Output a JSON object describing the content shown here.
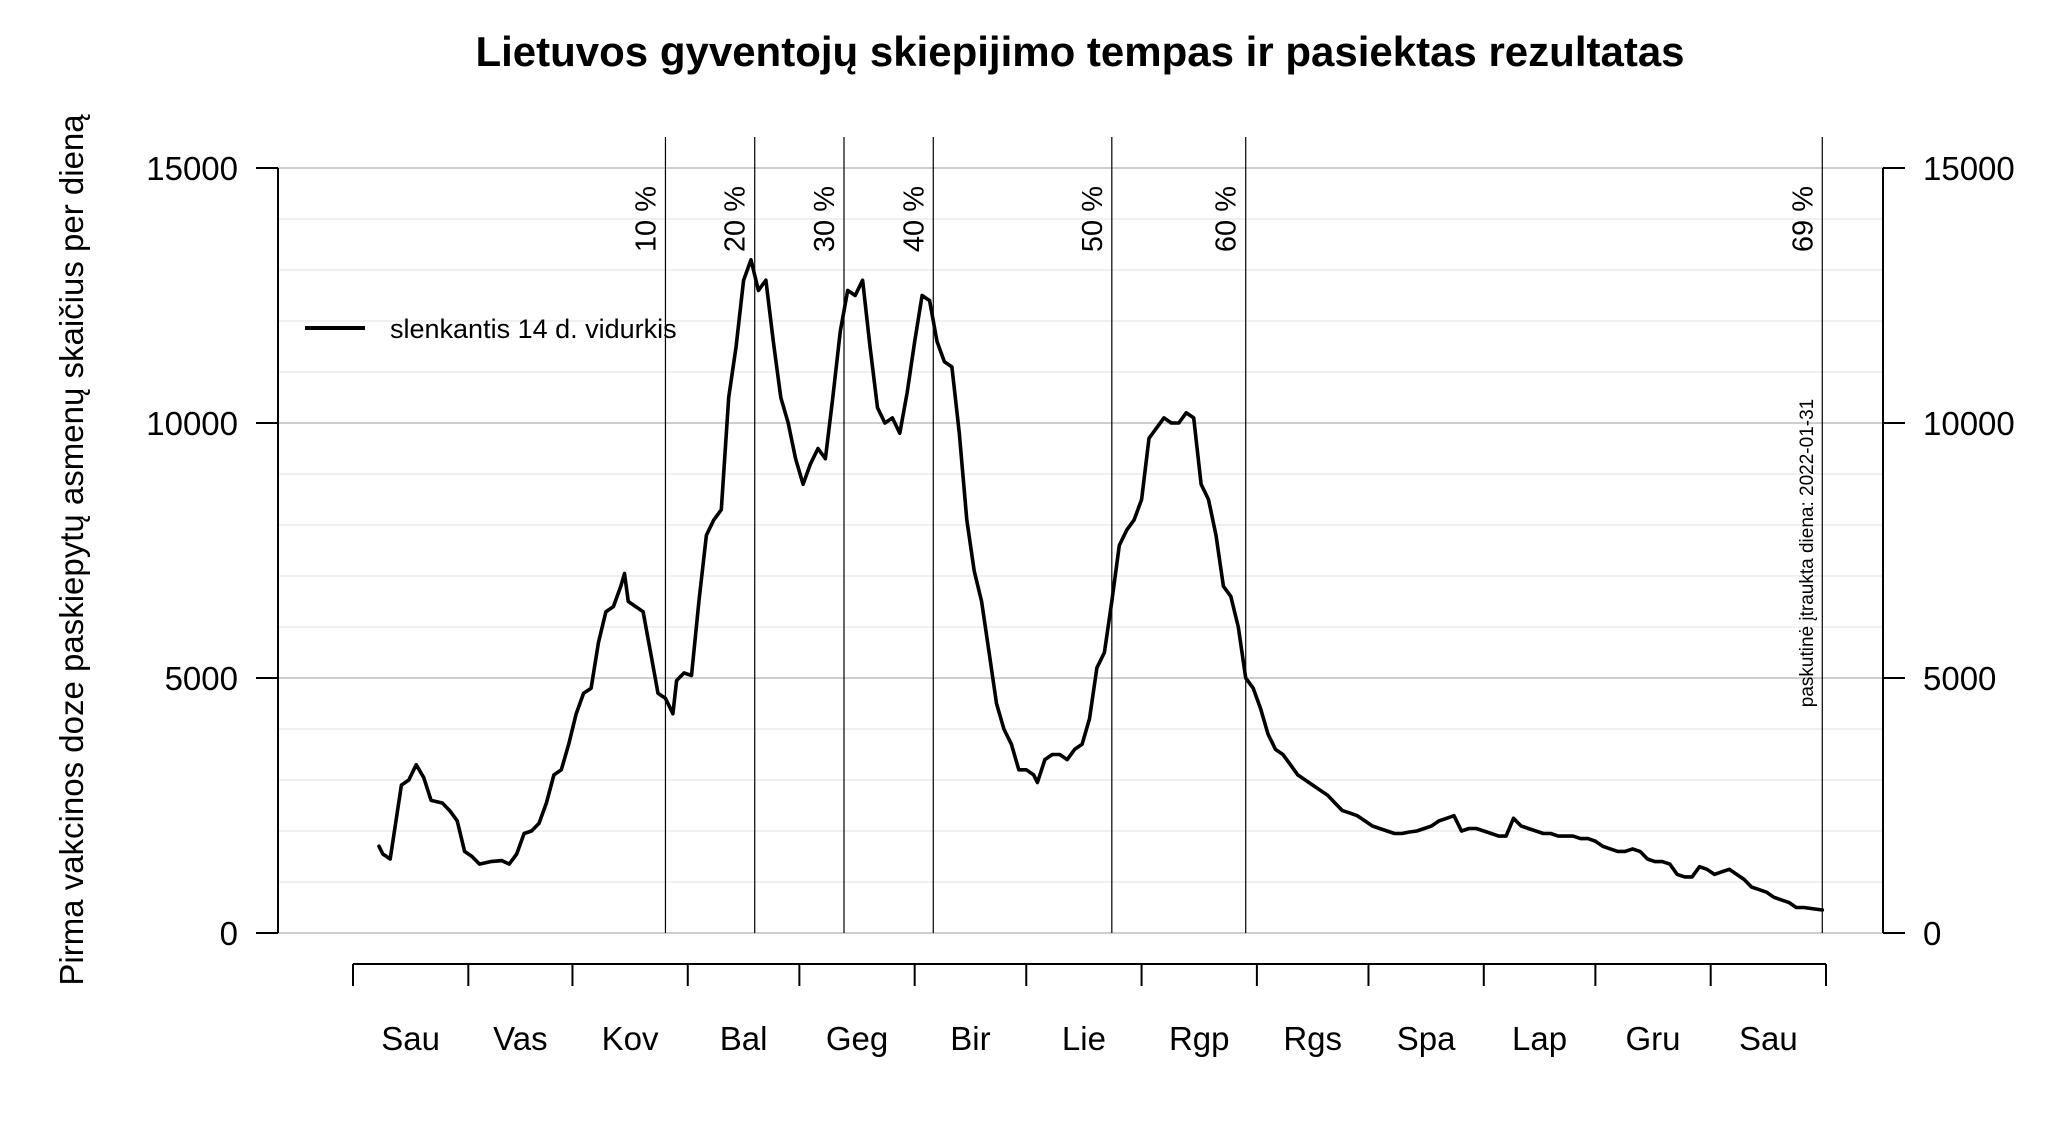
{
  "chart_data": {
    "type": "line",
    "title": "Lietuvos gyventojų skiepijimo tempas ir pasiektas rezultatas",
    "ylabel": "Pirma vakcinos doze paskiepytų asmenų skaičius per dieną",
    "xlabel": "",
    "ylim": [
      0,
      15000
    ],
    "y_ticks": [
      "0",
      "5000",
      "10000",
      "15000"
    ],
    "y_tick_values": [
      0,
      5000,
      10000,
      15000
    ],
    "minor_grid_step": 1000,
    "grid": true,
    "legend": {
      "label": "slenkantis 14 d. vidurkis",
      "placement": "top-left"
    },
    "note": "paskutinė įtraukta diena: 2022-01-31",
    "month_labels": [
      "Sau",
      "Vas",
      "Kov",
      "Bal",
      "Geg",
      "Bir",
      "Lie",
      "Rgp",
      "Rgs",
      "Spa",
      "Lap",
      "Gru",
      "Sau"
    ],
    "month_boundaries": [
      "2021-01-01",
      "2021-02-01",
      "2021-03-01",
      "2021-04-01",
      "2021-05-01",
      "2021-06-01",
      "2021-07-01",
      "2021-08-01",
      "2021-09-01",
      "2021-10-01",
      "2021-11-01",
      "2021-12-01",
      "2022-01-01",
      "2022-02-01"
    ],
    "x_range": [
      "2021-01-01",
      "2022-02-01"
    ],
    "milestones": [
      {
        "label": "10 %",
        "date": "2021-03-26"
      },
      {
        "label": "20 %",
        "date": "2021-04-19"
      },
      {
        "label": "30 %",
        "date": "2021-05-13"
      },
      {
        "label": "40 %",
        "date": "2021-06-06"
      },
      {
        "label": "50 %",
        "date": "2021-07-24"
      },
      {
        "label": "60 %",
        "date": "2021-08-29"
      },
      {
        "label": "69 %",
        "date": "2022-01-31"
      }
    ],
    "series": [
      {
        "name": "slenkantis 14 d. vidurkis",
        "color": "#000000",
        "points": [
          [
            "2021-01-08",
            1700
          ],
          [
            "2021-01-09",
            1550
          ],
          [
            "2021-01-11",
            1450
          ],
          [
            "2021-01-14",
            2900
          ],
          [
            "2021-01-16",
            3000
          ],
          [
            "2021-01-18",
            3300
          ],
          [
            "2021-01-20",
            3050
          ],
          [
            "2021-01-22",
            2600
          ],
          [
            "2021-01-25",
            2550
          ],
          [
            "2021-01-27",
            2400
          ],
          [
            "2021-01-29",
            2200
          ],
          [
            "2021-01-31",
            1600
          ],
          [
            "2021-02-02",
            1500
          ],
          [
            "2021-02-04",
            1350
          ],
          [
            "2021-02-07",
            1400
          ],
          [
            "2021-02-10",
            1420
          ],
          [
            "2021-02-12",
            1350
          ],
          [
            "2021-02-14",
            1550
          ],
          [
            "2021-02-16",
            1950
          ],
          [
            "2021-02-18",
            2000
          ],
          [
            "2021-02-20",
            2150
          ],
          [
            "2021-02-22",
            2550
          ],
          [
            "2021-02-24",
            3100
          ],
          [
            "2021-02-26",
            3200
          ],
          [
            "2021-02-28",
            3700
          ],
          [
            "2021-03-02",
            4300
          ],
          [
            "2021-03-04",
            4700
          ],
          [
            "2021-03-06",
            4800
          ],
          [
            "2021-03-08",
            5700
          ],
          [
            "2021-03-10",
            6300
          ],
          [
            "2021-03-12",
            6400
          ],
          [
            "2021-03-14",
            6800
          ],
          [
            "2021-03-15",
            7050
          ],
          [
            "2021-03-16",
            6500
          ],
          [
            "2021-03-18",
            6400
          ],
          [
            "2021-03-20",
            6300
          ],
          [
            "2021-03-22",
            5500
          ],
          [
            "2021-03-24",
            4700
          ],
          [
            "2021-03-26",
            4600
          ],
          [
            "2021-03-28",
            4300
          ],
          [
            "2021-03-29",
            4950
          ],
          [
            "2021-03-31",
            5100
          ],
          [
            "2021-04-02",
            5050
          ],
          [
            "2021-04-04",
            6500
          ],
          [
            "2021-04-06",
            7800
          ],
          [
            "2021-04-08",
            8100
          ],
          [
            "2021-04-10",
            8300
          ],
          [
            "2021-04-12",
            10500
          ],
          [
            "2021-04-14",
            11500
          ],
          [
            "2021-04-16",
            12800
          ],
          [
            "2021-04-18",
            13200
          ],
          [
            "2021-04-20",
            12600
          ],
          [
            "2021-04-22",
            12800
          ],
          [
            "2021-04-24",
            11600
          ],
          [
            "2021-04-26",
            10500
          ],
          [
            "2021-04-28",
            10000
          ],
          [
            "2021-04-30",
            9300
          ],
          [
            "2021-05-02",
            8800
          ],
          [
            "2021-05-04",
            9200
          ],
          [
            "2021-05-06",
            9500
          ],
          [
            "2021-05-08",
            9300
          ],
          [
            "2021-05-10",
            10500
          ],
          [
            "2021-05-12",
            11800
          ],
          [
            "2021-05-14",
            12600
          ],
          [
            "2021-05-16",
            12500
          ],
          [
            "2021-05-18",
            12800
          ],
          [
            "2021-05-20",
            11500
          ],
          [
            "2021-05-22",
            10300
          ],
          [
            "2021-05-24",
            10000
          ],
          [
            "2021-05-26",
            10100
          ],
          [
            "2021-05-28",
            9800
          ],
          [
            "2021-05-30",
            10600
          ],
          [
            "2021-06-01",
            11600
          ],
          [
            "2021-06-03",
            12500
          ],
          [
            "2021-06-05",
            12400
          ],
          [
            "2021-06-07",
            11600
          ],
          [
            "2021-06-09",
            11200
          ],
          [
            "2021-06-11",
            11100
          ],
          [
            "2021-06-13",
            9800
          ],
          [
            "2021-06-15",
            8100
          ],
          [
            "2021-06-17",
            7100
          ],
          [
            "2021-06-19",
            6500
          ],
          [
            "2021-06-21",
            5500
          ],
          [
            "2021-06-23",
            4500
          ],
          [
            "2021-06-25",
            4000
          ],
          [
            "2021-06-27",
            3700
          ],
          [
            "2021-06-29",
            3200
          ],
          [
            "2021-07-01",
            3200
          ],
          [
            "2021-07-03",
            3100
          ],
          [
            "2021-07-04",
            2950
          ],
          [
            "2021-07-06",
            3400
          ],
          [
            "2021-07-08",
            3500
          ],
          [
            "2021-07-10",
            3500
          ],
          [
            "2021-07-12",
            3400
          ],
          [
            "2021-07-14",
            3600
          ],
          [
            "2021-07-16",
            3700
          ],
          [
            "2021-07-18",
            4200
          ],
          [
            "2021-07-20",
            5200
          ],
          [
            "2021-07-22",
            5500
          ],
          [
            "2021-07-24",
            6500
          ],
          [
            "2021-07-26",
            7600
          ],
          [
            "2021-07-28",
            7900
          ],
          [
            "2021-07-30",
            8100
          ],
          [
            "2021-08-01",
            8500
          ],
          [
            "2021-08-03",
            9700
          ],
          [
            "2021-08-05",
            9900
          ],
          [
            "2021-08-07",
            10100
          ],
          [
            "2021-08-09",
            10000
          ],
          [
            "2021-08-11",
            10000
          ],
          [
            "2021-08-13",
            10200
          ],
          [
            "2021-08-15",
            10100
          ],
          [
            "2021-08-17",
            8800
          ],
          [
            "2021-08-19",
            8500
          ],
          [
            "2021-08-21",
            7800
          ],
          [
            "2021-08-23",
            6800
          ],
          [
            "2021-08-25",
            6600
          ],
          [
            "2021-08-27",
            6000
          ],
          [
            "2021-08-29",
            5000
          ],
          [
            "2021-08-31",
            4800
          ],
          [
            "2021-09-02",
            4400
          ],
          [
            "2021-09-04",
            3900
          ],
          [
            "2021-09-06",
            3600
          ],
          [
            "2021-09-08",
            3500
          ],
          [
            "2021-09-10",
            3300
          ],
          [
            "2021-09-12",
            3100
          ],
          [
            "2021-09-14",
            3000
          ],
          [
            "2021-09-16",
            2900
          ],
          [
            "2021-09-18",
            2800
          ],
          [
            "2021-09-20",
            2700
          ],
          [
            "2021-09-22",
            2550
          ],
          [
            "2021-09-24",
            2400
          ],
          [
            "2021-09-26",
            2350
          ],
          [
            "2021-09-28",
            2300
          ],
          [
            "2021-09-30",
            2200
          ],
          [
            "2021-10-02",
            2100
          ],
          [
            "2021-10-04",
            2050
          ],
          [
            "2021-10-06",
            2000
          ],
          [
            "2021-10-08",
            1950
          ],
          [
            "2021-10-10",
            1950
          ],
          [
            "2021-10-12",
            1980
          ],
          [
            "2021-10-14",
            2000
          ],
          [
            "2021-10-16",
            2050
          ],
          [
            "2021-10-18",
            2100
          ],
          [
            "2021-10-20",
            2200
          ],
          [
            "2021-10-22",
            2250
          ],
          [
            "2021-10-24",
            2300
          ],
          [
            "2021-10-26",
            2000
          ],
          [
            "2021-10-28",
            2050
          ],
          [
            "2021-10-30",
            2050
          ],
          [
            "2021-11-01",
            2000
          ],
          [
            "2021-11-03",
            1950
          ],
          [
            "2021-11-05",
            1900
          ],
          [
            "2021-11-07",
            1900
          ],
          [
            "2021-11-09",
            2250
          ],
          [
            "2021-11-11",
            2100
          ],
          [
            "2021-11-13",
            2050
          ],
          [
            "2021-11-15",
            2000
          ],
          [
            "2021-11-17",
            1950
          ],
          [
            "2021-11-19",
            1950
          ],
          [
            "2021-11-21",
            1900
          ],
          [
            "2021-11-23",
            1900
          ],
          [
            "2021-11-25",
            1900
          ],
          [
            "2021-11-27",
            1850
          ],
          [
            "2021-11-29",
            1850
          ],
          [
            "2021-12-01",
            1800
          ],
          [
            "2021-12-03",
            1700
          ],
          [
            "2021-12-05",
            1650
          ],
          [
            "2021-12-07",
            1600
          ],
          [
            "2021-12-09",
            1600
          ],
          [
            "2021-12-11",
            1650
          ],
          [
            "2021-12-13",
            1600
          ],
          [
            "2021-12-15",
            1450
          ],
          [
            "2021-12-17",
            1400
          ],
          [
            "2021-12-19",
            1400
          ],
          [
            "2021-12-21",
            1350
          ],
          [
            "2021-12-23",
            1150
          ],
          [
            "2021-12-25",
            1100
          ],
          [
            "2021-12-27",
            1100
          ],
          [
            "2021-12-29",
            1300
          ],
          [
            "2021-12-31",
            1250
          ],
          [
            "2022-01-02",
            1150
          ],
          [
            "2022-01-04",
            1200
          ],
          [
            "2022-01-06",
            1250
          ],
          [
            "2022-01-08",
            1150
          ],
          [
            "2022-01-10",
            1050
          ],
          [
            "2022-01-12",
            900
          ],
          [
            "2022-01-14",
            850
          ],
          [
            "2022-01-16",
            800
          ],
          [
            "2022-01-18",
            700
          ],
          [
            "2022-01-20",
            650
          ],
          [
            "2022-01-22",
            600
          ],
          [
            "2022-01-24",
            500
          ],
          [
            "2022-01-26",
            500
          ],
          [
            "2022-01-28",
            480
          ],
          [
            "2022-01-31",
            450
          ]
        ]
      }
    ]
  }
}
